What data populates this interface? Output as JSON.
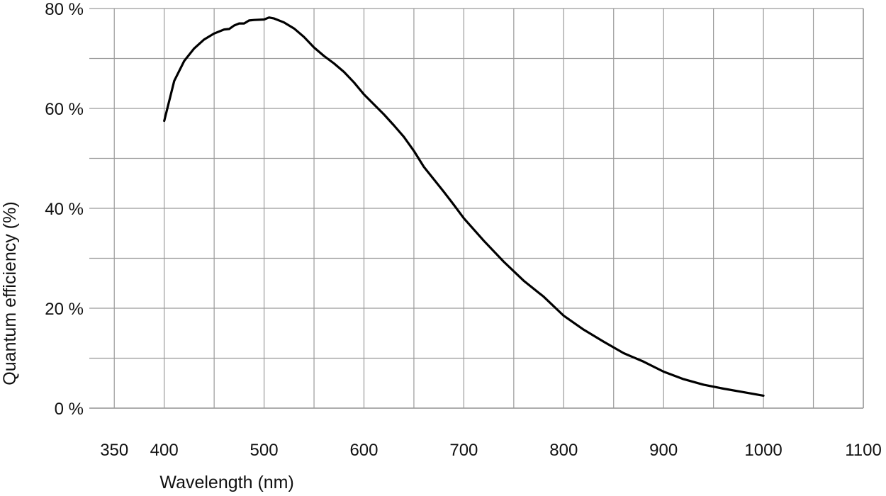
{
  "chart_data": {
    "type": "line",
    "title": "",
    "xlabel": "Wavelength (nm)",
    "ylabel": "Quantum efficiency (%)",
    "xlim": [
      325,
      1100
    ],
    "ylim": [
      0,
      80
    ],
    "x_ticks": [
      350,
      400,
      500,
      600,
      700,
      800,
      900,
      1000,
      1100
    ],
    "x_tick_labels": [
      "350",
      "400",
      "500",
      "600",
      "700",
      "800",
      "900",
      "1000",
      "1100"
    ],
    "y_ticks": [
      0,
      20,
      40,
      60,
      80
    ],
    "y_tick_labels": [
      "0 %",
      "20 %",
      "40 %",
      "60 %",
      "80 %"
    ],
    "x_gridlines": [
      350,
      400,
      450,
      500,
      550,
      600,
      650,
      700,
      750,
      800,
      850,
      900,
      950,
      1000,
      1050,
      1100
    ],
    "y_gridlines": [
      0,
      10,
      20,
      30,
      40,
      50,
      60,
      70,
      80
    ],
    "grid": true,
    "line_color": "#000000",
    "grid_color": "#9a9a9a",
    "series": [
      {
        "x": [
          400,
          410,
          420,
          430,
          440,
          450,
          460,
          465,
          470,
          475,
          480,
          485,
          490,
          500,
          505,
          510,
          520,
          530,
          540,
          550,
          560,
          570,
          580,
          590,
          600,
          610,
          620,
          630,
          640,
          650,
          660,
          670,
          680,
          690,
          700,
          720,
          740,
          760,
          780,
          800,
          820,
          840,
          860,
          880,
          900,
          920,
          940,
          960,
          980,
          1000
        ],
        "y": [
          57.5,
          65.5,
          69.5,
          72.0,
          73.8,
          75.0,
          75.8,
          75.9,
          76.6,
          77.0,
          77.0,
          77.6,
          77.7,
          77.8,
          78.2,
          78.0,
          77.2,
          76.0,
          74.3,
          72.2,
          70.5,
          69.0,
          67.3,
          65.2,
          62.8,
          60.8,
          58.8,
          56.6,
          54.3,
          51.5,
          48.3,
          45.8,
          43.3,
          40.7,
          38.0,
          33.5,
          29.3,
          25.5,
          22.3,
          18.5,
          15.7,
          13.3,
          11.0,
          9.3,
          7.3,
          5.8,
          4.7,
          3.9,
          3.2,
          2.5
        ]
      }
    ]
  }
}
